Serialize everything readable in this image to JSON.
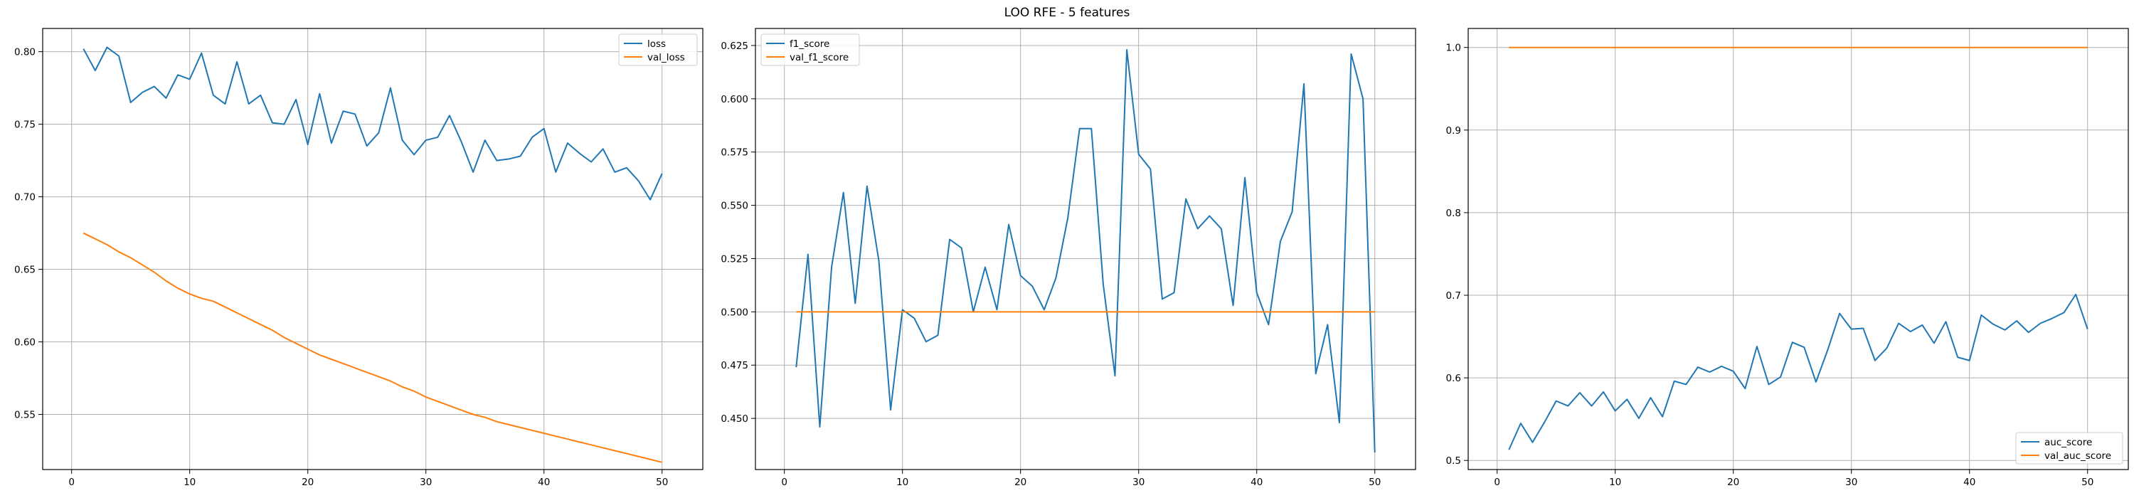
{
  "figure": {
    "title": "LOO RFE - 5 features"
  },
  "chart_data": [
    {
      "type": "line",
      "title": "",
      "xlabel": "",
      "ylabel": "",
      "xlim": [
        -2.45,
        53.45
      ],
      "ylim": [
        0.512,
        0.816
      ],
      "xticks": [
        0,
        10,
        20,
        30,
        40,
        50
      ],
      "yticks": [
        0.55,
        0.6,
        0.65,
        0.7,
        0.75,
        0.8
      ],
      "ytick_labels": [
        "0.55",
        "0.60",
        "0.65",
        "0.70",
        "0.75",
        "0.80"
      ],
      "grid": true,
      "legend_position": "upper right",
      "x": [
        1,
        2,
        3,
        4,
        5,
        6,
        7,
        8,
        9,
        10,
        11,
        12,
        13,
        14,
        15,
        16,
        17,
        18,
        19,
        20,
        21,
        22,
        23,
        24,
        25,
        26,
        27,
        28,
        29,
        30,
        31,
        32,
        33,
        34,
        35,
        36,
        37,
        38,
        39,
        40,
        41,
        42,
        43,
        44,
        45,
        46,
        47,
        48,
        49,
        50
      ],
      "series": [
        {
          "name": "loss",
          "color": "#1f77b4",
          "values": [
            0.802,
            0.787,
            0.803,
            0.797,
            0.765,
            0.772,
            0.776,
            0.768,
            0.784,
            0.781,
            0.799,
            0.77,
            0.764,
            0.793,
            0.764,
            0.77,
            0.751,
            0.75,
            0.767,
            0.736,
            0.771,
            0.737,
            0.759,
            0.757,
            0.735,
            0.744,
            0.775,
            0.739,
            0.729,
            0.739,
            0.741,
            0.756,
            0.738,
            0.717,
            0.739,
            0.725,
            0.726,
            0.728,
            0.741,
            0.747,
            0.717,
            0.737,
            0.73,
            0.724,
            0.733,
            0.717,
            0.72,
            0.711,
            0.698,
            0.716
          ]
        },
        {
          "name": "val_loss",
          "color": "#ff7f0e",
          "values": [
            0.675,
            0.671,
            0.667,
            0.662,
            0.658,
            0.653,
            0.648,
            0.642,
            0.637,
            0.633,
            0.63,
            0.628,
            0.624,
            0.62,
            0.616,
            0.612,
            0.608,
            0.603,
            0.599,
            0.595,
            0.591,
            0.588,
            0.585,
            0.582,
            0.579,
            0.576,
            0.573,
            0.569,
            0.566,
            0.562,
            0.559,
            0.556,
            0.553,
            0.55,
            0.548,
            0.545,
            0.543,
            0.541,
            0.539,
            0.537,
            0.535,
            0.533,
            0.531,
            0.529,
            0.527,
            0.525,
            0.523,
            0.521,
            0.519,
            0.517
          ]
        }
      ]
    },
    {
      "type": "line",
      "title": "",
      "xlabel": "",
      "ylabel": "",
      "xlim": [
        -2.45,
        53.45
      ],
      "ylim": [
        0.426,
        0.633
      ],
      "xticks": [
        0,
        10,
        20,
        30,
        40,
        50
      ],
      "yticks": [
        0.45,
        0.475,
        0.5,
        0.525,
        0.55,
        0.575,
        0.6,
        0.625
      ],
      "ytick_labels": [
        "0.450",
        "0.475",
        "0.500",
        "0.525",
        "0.550",
        "0.575",
        "0.600",
        "0.625"
      ],
      "grid": true,
      "legend_position": "upper left",
      "x": [
        1,
        2,
        3,
        4,
        5,
        6,
        7,
        8,
        9,
        10,
        11,
        12,
        13,
        14,
        15,
        16,
        17,
        18,
        19,
        20,
        21,
        22,
        23,
        24,
        25,
        26,
        27,
        28,
        29,
        30,
        31,
        32,
        33,
        34,
        35,
        36,
        37,
        38,
        39,
        40,
        41,
        42,
        43,
        44,
        45,
        46,
        47,
        48,
        49,
        50
      ],
      "series": [
        {
          "name": "f1_score",
          "color": "#1f77b4",
          "values": [
            0.474,
            0.527,
            0.446,
            0.521,
            0.556,
            0.504,
            0.559,
            0.524,
            0.454,
            0.501,
            0.497,
            0.486,
            0.489,
            0.534,
            0.53,
            0.5,
            0.521,
            0.501,
            0.541,
            0.517,
            0.512,
            0.501,
            0.516,
            0.544,
            0.586,
            0.586,
            0.513,
            0.47,
            0.623,
            0.574,
            0.567,
            0.506,
            0.509,
            0.553,
            0.539,
            0.545,
            0.539,
            0.503,
            0.563,
            0.509,
            0.494,
            0.533,
            0.547,
            0.607,
            0.471,
            0.494,
            0.448,
            0.621,
            0.6,
            0.434
          ]
        },
        {
          "name": "val_f1_score",
          "color": "#ff7f0e",
          "values": [
            0.5,
            0.5,
            0.5,
            0.5,
            0.5,
            0.5,
            0.5,
            0.5,
            0.5,
            0.5,
            0.5,
            0.5,
            0.5,
            0.5,
            0.5,
            0.5,
            0.5,
            0.5,
            0.5,
            0.5,
            0.5,
            0.5,
            0.5,
            0.5,
            0.5,
            0.5,
            0.5,
            0.5,
            0.5,
            0.5,
            0.5,
            0.5,
            0.5,
            0.5,
            0.5,
            0.5,
            0.5,
            0.5,
            0.5,
            0.5,
            0.5,
            0.5,
            0.5,
            0.5,
            0.5,
            0.5,
            0.5,
            0.5,
            0.5,
            0.5
          ]
        }
      ]
    },
    {
      "type": "line",
      "title": "",
      "xlabel": "",
      "ylabel": "",
      "xlim": [
        -2.45,
        53.45
      ],
      "ylim": [
        0.489,
        1.023
      ],
      "xticks": [
        0,
        10,
        20,
        30,
        40,
        50
      ],
      "yticks": [
        0.5,
        0.6,
        0.7,
        0.8,
        0.9,
        1.0
      ],
      "ytick_labels": [
        "0.5",
        "0.6",
        "0.7",
        "0.8",
        "0.9",
        "1.0"
      ],
      "grid": true,
      "legend_position": "lower right",
      "x": [
        1,
        2,
        3,
        4,
        5,
        6,
        7,
        8,
        9,
        10,
        11,
        12,
        13,
        14,
        15,
        16,
        17,
        18,
        19,
        20,
        21,
        22,
        23,
        24,
        25,
        26,
        27,
        28,
        29,
        30,
        31,
        32,
        33,
        34,
        35,
        36,
        37,
        38,
        39,
        40,
        41,
        42,
        43,
        44,
        45,
        46,
        47,
        48,
        49,
        50
      ],
      "series": [
        {
          "name": "auc_score",
          "color": "#1f77b4",
          "values": [
            0.513,
            0.545,
            0.522,
            0.546,
            0.572,
            0.566,
            0.582,
            0.566,
            0.583,
            0.56,
            0.574,
            0.551,
            0.576,
            0.553,
            0.596,
            0.592,
            0.613,
            0.607,
            0.614,
            0.608,
            0.587,
            0.638,
            0.592,
            0.601,
            0.643,
            0.637,
            0.595,
            0.634,
            0.678,
            0.659,
            0.66,
            0.621,
            0.636,
            0.666,
            0.656,
            0.664,
            0.642,
            0.668,
            0.625,
            0.621,
            0.676,
            0.665,
            0.658,
            0.669,
            0.655,
            0.666,
            0.672,
            0.679,
            0.701,
            0.659
          ]
        },
        {
          "name": "val_auc_score",
          "color": "#ff7f0e",
          "values": [
            1.0,
            1.0,
            1.0,
            1.0,
            1.0,
            1.0,
            1.0,
            1.0,
            1.0,
            1.0,
            1.0,
            1.0,
            1.0,
            1.0,
            1.0,
            1.0,
            1.0,
            1.0,
            1.0,
            1.0,
            1.0,
            1.0,
            1.0,
            1.0,
            1.0,
            1.0,
            1.0,
            1.0,
            1.0,
            1.0,
            1.0,
            1.0,
            1.0,
            1.0,
            1.0,
            1.0,
            1.0,
            1.0,
            1.0,
            1.0,
            1.0,
            1.0,
            1.0,
            1.0,
            1.0,
            1.0,
            1.0,
            1.0,
            1.0,
            1.0
          ]
        }
      ]
    }
  ]
}
